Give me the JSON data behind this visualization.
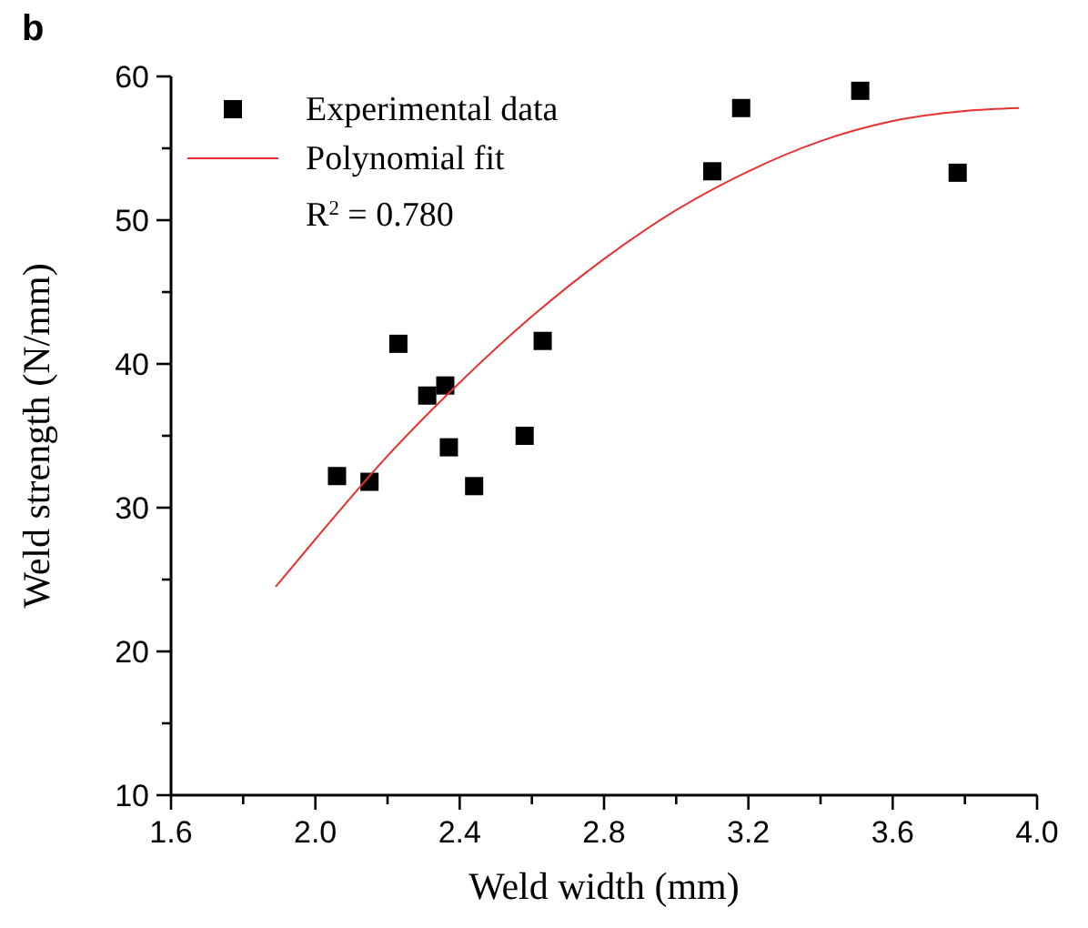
{
  "chart_data": {
    "type": "scatter",
    "title": "b",
    "xlabel": "Weld width (mm)",
    "ylabel": "Weld strength (N/mm)",
    "xlim": [
      1.6,
      4.0
    ],
    "ylim": [
      10,
      60
    ],
    "xticks": [
      1.6,
      {
        "value": 1.8,
        "label": null
      },
      {
        "value": 2,
        "label": "2.0"
      },
      {
        "value": 2.2,
        "label": null
      },
      2.4,
      {
        "value": 2.6,
        "label": null
      },
      2.8,
      {
        "value": 3.0,
        "label": null
      },
      3.2,
      {
        "value": 3.4,
        "label": null
      },
      3.6,
      {
        "value": 3.8,
        "label": null
      },
      {
        "value": 4,
        "label": "4.0"
      }
    ],
    "yticks": [
      10,
      {
        "value": 15,
        "label": null
      },
      20,
      {
        "value": 25,
        "label": null
      },
      30,
      {
        "value": 35,
        "label": null
      },
      40,
      {
        "value": 45,
        "label": null
      },
      50,
      {
        "value": 55,
        "label": null
      },
      60
    ],
    "legend": "top left",
    "grid": false,
    "annotations": [
      "R$^{2}$ = 0.780"
    ],
    "series": [
      {
        "name": "Experimental data",
        "color": "#000000",
        "marker": "square",
        "x": [
          2.06,
          2.15,
          2.23,
          2.31,
          2.36,
          2.37,
          2.44,
          2.58,
          2.63,
          3.1,
          3.18,
          3.51,
          3.78
        ],
        "values": [
          32.2,
          31.8,
          41.4,
          37.8,
          38.5,
          34.2,
          31.5,
          35.0,
          41.6,
          53.4,
          57.8,
          59.0,
          53.3
        ]
      },
      {
        "name": "Polynomial fit",
        "type": "line",
        "color": "#e8312f",
        "marker": "none",
        "line_style": "solid",
        "x": [
          1.89,
          2.0,
          2.2,
          2.4,
          2.6,
          2.8,
          3.0,
          3.2,
          3.4,
          3.6,
          3.8,
          3.95
        ],
        "values": [
          24.5,
          27.8,
          33.6,
          38.7,
          43.3,
          47.3,
          50.7,
          53.4,
          55.5,
          56.9,
          57.6,
          57.8
        ]
      }
    ]
  }
}
